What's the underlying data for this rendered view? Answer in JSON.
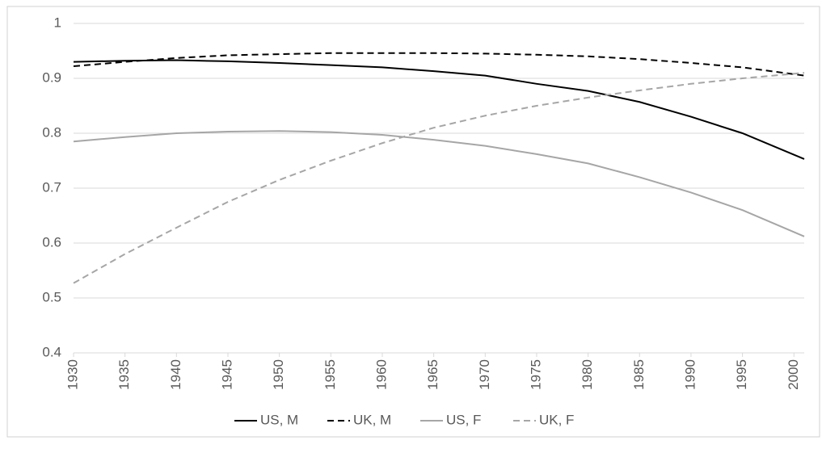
{
  "chart_data": {
    "type": "line",
    "x": [
      1930,
      1935,
      1940,
      1945,
      1950,
      1955,
      1960,
      1965,
      1970,
      1975,
      1980,
      1985,
      1990,
      1995,
      2001
    ],
    "series": [
      {
        "name": "US, M",
        "color": "#000000",
        "dash": false,
        "values": [
          0.93,
          0.932,
          0.933,
          0.931,
          0.928,
          0.924,
          0.92,
          0.913,
          0.905,
          0.89,
          0.877,
          0.857,
          0.83,
          0.8,
          0.753
        ]
      },
      {
        "name": "UK, M",
        "color": "#000000",
        "dash": true,
        "values": [
          0.922,
          0.93,
          0.937,
          0.942,
          0.944,
          0.946,
          0.946,
          0.946,
          0.945,
          0.943,
          0.94,
          0.935,
          0.928,
          0.92,
          0.905
        ]
      },
      {
        "name": "US, F",
        "color": "#a6a6a6",
        "dash": false,
        "values": [
          0.785,
          0.793,
          0.8,
          0.803,
          0.804,
          0.802,
          0.797,
          0.788,
          0.777,
          0.762,
          0.745,
          0.72,
          0.692,
          0.66,
          0.612
        ]
      },
      {
        "name": "UK, F",
        "color": "#a6a6a6",
        "dash": true,
        "values": [
          0.527,
          0.58,
          0.628,
          0.675,
          0.715,
          0.75,
          0.782,
          0.81,
          0.832,
          0.85,
          0.865,
          0.878,
          0.89,
          0.9,
          0.91
        ]
      }
    ],
    "xlim": [
      1930,
      2001
    ],
    "xticks": [
      1930,
      1935,
      1940,
      1945,
      1950,
      1955,
      1960,
      1965,
      1970,
      1975,
      1980,
      1985,
      1990,
      1995,
      2000
    ],
    "ylim": [
      0.4,
      1
    ],
    "yticks": [
      0.4,
      0.5,
      0.6,
      0.7,
      0.8,
      0.9,
      1
    ],
    "grid": true,
    "legend": "bottom"
  }
}
